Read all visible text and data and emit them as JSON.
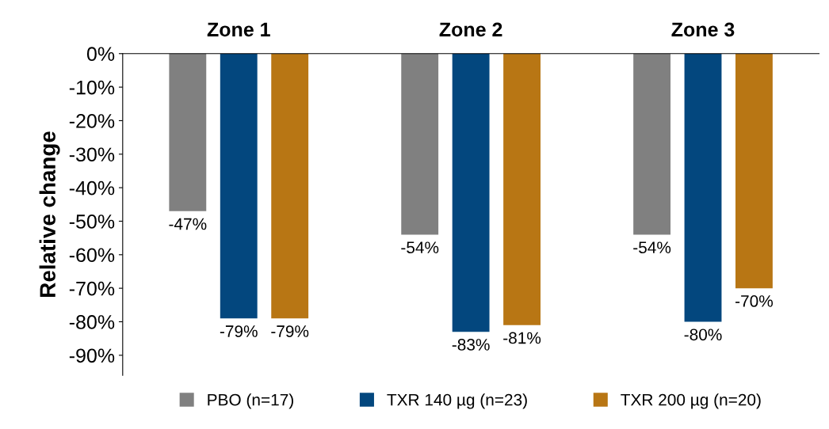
{
  "chart_data": {
    "type": "bar",
    "ylabel": "Relative change",
    "categories": [
      "Zone 1",
      "Zone 2",
      "Zone 3"
    ],
    "series": [
      {
        "name": "PBO (n=17)",
        "color": "#808080",
        "values": [
          -47,
          -54,
          -54
        ],
        "value_labels": [
          "-47%",
          "-54%",
          "-54%"
        ]
      },
      {
        "name": "TXR 140 µg (n=23)",
        "color": "#03477e",
        "values": [
          -79,
          -83,
          -80
        ],
        "value_labels": [
          "-79%",
          "-83%",
          "-80%"
        ]
      },
      {
        "name": "TXR 200 µg (n=20)",
        "color": "#b87614",
        "values": [
          -79,
          -81,
          -70
        ],
        "value_labels": [
          "-79%",
          "-81%",
          "-70%"
        ]
      }
    ],
    "ylim": [
      -96,
      0
    ],
    "yticks": [
      {
        "value": 0,
        "label": "0%"
      },
      {
        "value": -10,
        "label": "-10%"
      },
      {
        "value": -20,
        "label": "-20%"
      },
      {
        "value": -30,
        "label": "-30%"
      },
      {
        "value": -40,
        "label": "-40%"
      },
      {
        "value": -50,
        "label": "-50%"
      },
      {
        "value": -60,
        "label": "-60%"
      },
      {
        "value": -70,
        "label": "-70%"
      },
      {
        "value": -80,
        "label": "-80%"
      },
      {
        "value": -90,
        "label": "-90%"
      }
    ],
    "grid": false,
    "legend": "bottom"
  }
}
